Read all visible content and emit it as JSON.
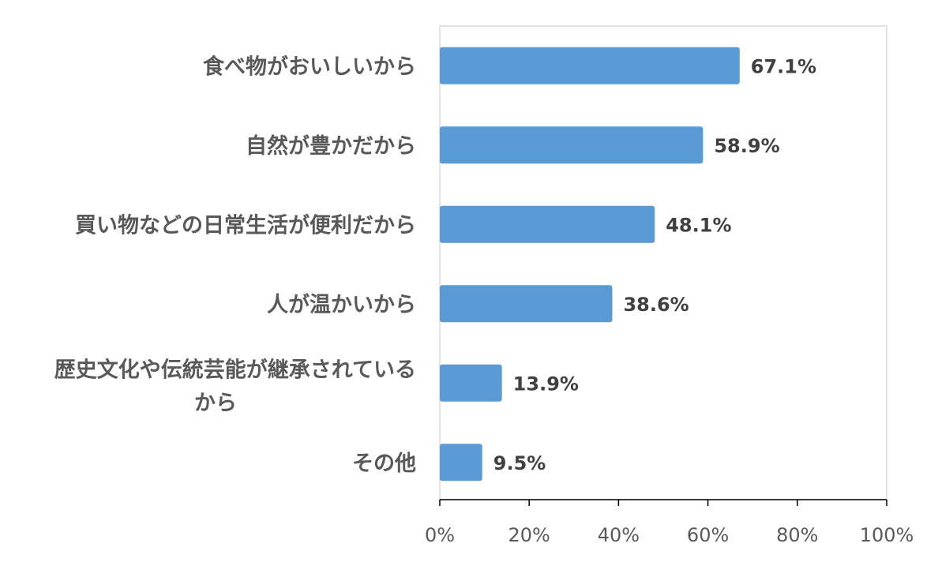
{
  "chart_data": {
    "type": "bar",
    "orientation": "horizontal",
    "categories": [
      "食べ物がおいしいから",
      "自然が豊かだから",
      "買い物などの日常生活が便利だから",
      "人が温かいから",
      "歴史文化や伝統芸能が継承されているから",
      "その他"
    ],
    "values": [
      67.1,
      58.9,
      48.1,
      38.6,
      13.9,
      9.5
    ],
    "value_labels": [
      "67.1%",
      "58.9%",
      "48.1%",
      "38.6%",
      "13.9%",
      "9.5%"
    ],
    "xlim": [
      0,
      100
    ],
    "ticks": [
      "0%",
      "20%",
      "40%",
      "60%",
      "80%",
      "100%"
    ],
    "grid": false,
    "legend": "none",
    "bar_color": "#5B9BD5",
    "title": "",
    "xlabel": "",
    "ylabel": ""
  }
}
